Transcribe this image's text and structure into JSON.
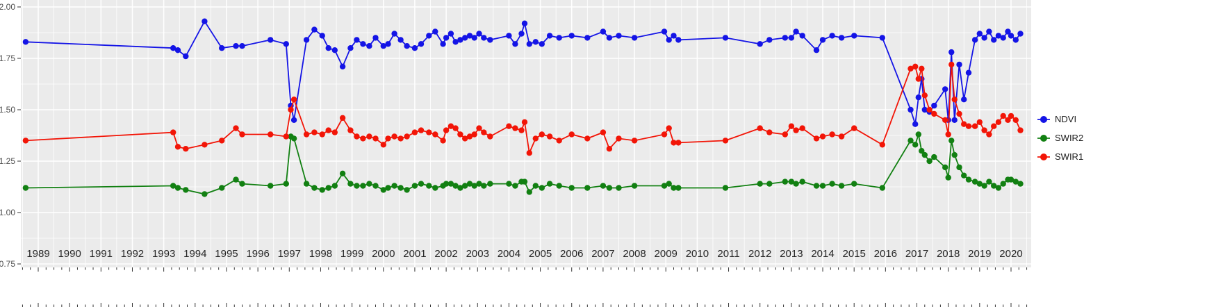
{
  "figure": {
    "background": "#FFFFFF",
    "panel_background": "#EBEBEB",
    "grid_color": "#FFFFFF",
    "axis_text_color": "#4D4D4D",
    "x_label_color": "#262626",
    "tick_color": "#333333"
  },
  "legend": {
    "items": [
      {
        "label": "NDVI",
        "color": "#1414E6"
      },
      {
        "label": "SWIR2",
        "color": "#128012"
      },
      {
        "label": "SWIR1",
        "color": "#F21507"
      }
    ]
  },
  "chart_data": {
    "type": "line",
    "title": "",
    "xlabel": "",
    "ylabel": "",
    "grid": true,
    "legend_position": "right",
    "xlim": [
      1988.45,
      2020.64
    ],
    "ylim": [
      0.75,
      2.0
    ],
    "x_ticks": [
      1989,
      1990,
      1991,
      1992,
      1993,
      1994,
      1995,
      1996,
      1997,
      1998,
      1999,
      2000,
      2001,
      2002,
      2003,
      2004,
      2005,
      2006,
      2007,
      2008,
      2009,
      2010,
      2011,
      2012,
      2013,
      2014,
      2015,
      2016,
      2017,
      2018,
      2019,
      2020
    ],
    "y_ticks": [
      0.75,
      1.0,
      1.25,
      1.5,
      1.75,
      2.0
    ],
    "y_tick_labels": [
      "0.75",
      "1.00",
      "1.25",
      "1.50",
      "1.75",
      "2.00"
    ],
    "x": [
      1988.6,
      1993.3,
      1993.45,
      1993.7,
      1994.3,
      1994.85,
      1995.3,
      1995.5,
      1996.4,
      1996.9,
      1997.05,
      1997.15,
      1997.55,
      1997.8,
      1998.05,
      1998.25,
      1998.45,
      1998.7,
      1998.95,
      1999.15,
      1999.35,
      1999.55,
      1999.75,
      2000.0,
      2000.15,
      2000.35,
      2000.55,
      2000.75,
      2001.0,
      2001.2,
      2001.45,
      2001.65,
      2001.9,
      2002.0,
      2002.15,
      2002.3,
      2002.45,
      2002.6,
      2002.75,
      2002.9,
      2003.05,
      2003.2,
      2003.4,
      2004.0,
      2004.2,
      2004.4,
      2004.5,
      2004.65,
      2004.85,
      2005.05,
      2005.3,
      2005.6,
      2006.0,
      2006.5,
      2007.0,
      2007.2,
      2007.5,
      2008.0,
      2008.95,
      2009.1,
      2009.25,
      2009.4,
      2010.9,
      2012.0,
      2012.3,
      2012.8,
      2013.0,
      2013.15,
      2013.35,
      2013.8,
      2014.0,
      2014.3,
      2014.6,
      2015.0,
      2015.9,
      2016.8,
      2016.95,
      2017.05,
      2017.15,
      2017.25,
      2017.4,
      2017.55,
      2017.9,
      2018.0,
      2018.1,
      2018.2,
      2018.35,
      2018.5,
      2018.65,
      2018.85,
      2019.0,
      2019.15,
      2019.3,
      2019.45,
      2019.6,
      2019.75,
      2019.9,
      2020.0,
      2020.15,
      2020.3
    ],
    "series": [
      {
        "name": "NDVI",
        "color": "#1414E6",
        "values": [
          1.83,
          1.8,
          1.79,
          1.76,
          1.93,
          1.8,
          1.81,
          1.81,
          1.84,
          1.82,
          1.52,
          1.45,
          1.84,
          1.89,
          1.86,
          1.8,
          1.79,
          1.71,
          1.8,
          1.84,
          1.82,
          1.81,
          1.85,
          1.81,
          1.82,
          1.87,
          1.84,
          1.81,
          1.8,
          1.82,
          1.86,
          1.88,
          1.82,
          1.85,
          1.87,
          1.83,
          1.84,
          1.85,
          1.86,
          1.85,
          1.87,
          1.85,
          1.84,
          1.86,
          1.82,
          1.87,
          1.92,
          1.82,
          1.83,
          1.82,
          1.86,
          1.85,
          1.86,
          1.85,
          1.88,
          1.85,
          1.86,
          1.85,
          1.88,
          1.84,
          1.86,
          1.84,
          1.85,
          1.82,
          1.84,
          1.85,
          1.85,
          1.88,
          1.86,
          1.79,
          1.84,
          1.86,
          1.85,
          1.86,
          1.85,
          1.5,
          1.43,
          1.56,
          1.65,
          1.5,
          1.49,
          1.52,
          1.6,
          1.45,
          1.78,
          1.45,
          1.72,
          1.55,
          1.68,
          1.84,
          1.87,
          1.85,
          1.88,
          1.84,
          1.86,
          1.85,
          1.88,
          1.86,
          1.84,
          1.87
        ]
      },
      {
        "name": "SWIR2",
        "color": "#128012",
        "values": [
          1.12,
          1.13,
          1.12,
          1.11,
          1.09,
          1.12,
          1.16,
          1.14,
          1.13,
          1.14,
          1.37,
          1.36,
          1.14,
          1.12,
          1.11,
          1.12,
          1.13,
          1.19,
          1.14,
          1.13,
          1.13,
          1.14,
          1.13,
          1.11,
          1.12,
          1.13,
          1.12,
          1.11,
          1.13,
          1.14,
          1.13,
          1.12,
          1.13,
          1.14,
          1.14,
          1.13,
          1.12,
          1.13,
          1.14,
          1.13,
          1.14,
          1.13,
          1.14,
          1.14,
          1.13,
          1.15,
          1.15,
          1.1,
          1.13,
          1.12,
          1.14,
          1.13,
          1.12,
          1.12,
          1.13,
          1.12,
          1.12,
          1.13,
          1.13,
          1.14,
          1.12,
          1.12,
          1.12,
          1.14,
          1.14,
          1.15,
          1.15,
          1.14,
          1.15,
          1.13,
          1.13,
          1.14,
          1.13,
          1.14,
          1.12,
          1.35,
          1.33,
          1.38,
          1.3,
          1.28,
          1.25,
          1.27,
          1.22,
          1.17,
          1.35,
          1.28,
          1.22,
          1.18,
          1.16,
          1.15,
          1.14,
          1.13,
          1.15,
          1.13,
          1.12,
          1.14,
          1.16,
          1.16,
          1.15,
          1.14
        ]
      },
      {
        "name": "SWIR1",
        "color": "#F21507",
        "values": [
          1.35,
          1.39,
          1.32,
          1.31,
          1.33,
          1.35,
          1.41,
          1.38,
          1.38,
          1.37,
          1.5,
          1.55,
          1.38,
          1.39,
          1.38,
          1.4,
          1.39,
          1.46,
          1.4,
          1.37,
          1.36,
          1.37,
          1.36,
          1.33,
          1.36,
          1.37,
          1.36,
          1.37,
          1.39,
          1.4,
          1.39,
          1.38,
          1.35,
          1.4,
          1.42,
          1.41,
          1.38,
          1.36,
          1.37,
          1.38,
          1.41,
          1.39,
          1.37,
          1.42,
          1.41,
          1.4,
          1.44,
          1.29,
          1.36,
          1.38,
          1.37,
          1.35,
          1.38,
          1.36,
          1.39,
          1.31,
          1.36,
          1.35,
          1.38,
          1.41,
          1.34,
          1.34,
          1.35,
          1.41,
          1.39,
          1.38,
          1.42,
          1.4,
          1.41,
          1.36,
          1.37,
          1.38,
          1.37,
          1.41,
          1.33,
          1.7,
          1.71,
          1.65,
          1.7,
          1.57,
          1.5,
          1.48,
          1.45,
          1.38,
          1.72,
          1.55,
          1.48,
          1.43,
          1.42,
          1.42,
          1.44,
          1.4,
          1.38,
          1.42,
          1.44,
          1.47,
          1.45,
          1.47,
          1.45,
          1.4
        ]
      }
    ]
  }
}
